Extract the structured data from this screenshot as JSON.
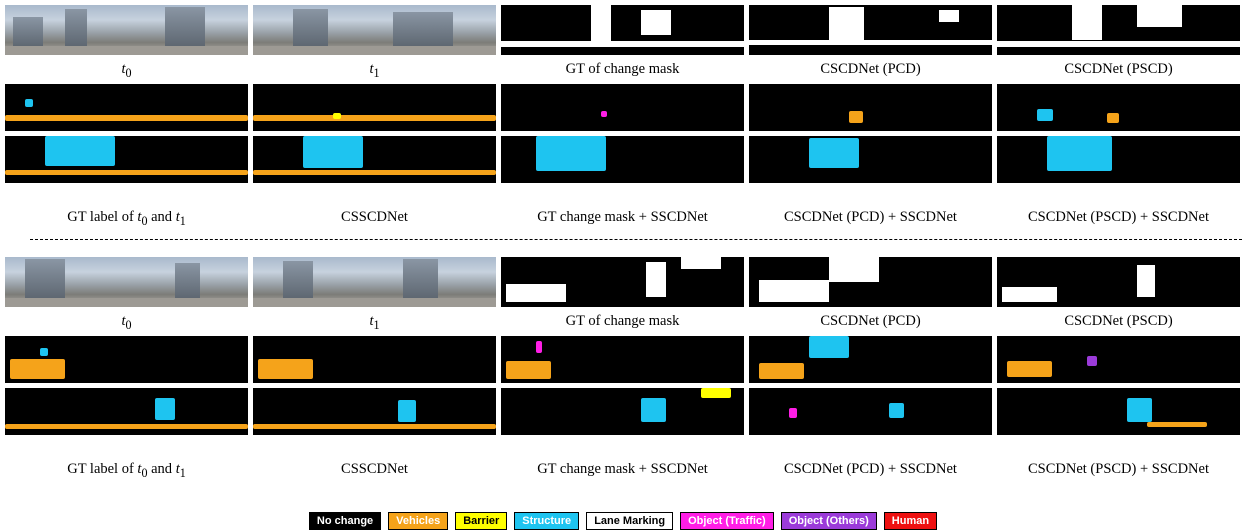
{
  "top_block": {
    "row1_captions": [
      "t0",
      "t1",
      "GT of change mask",
      "CSCDNet (PCD)",
      "CSCDNet (PSCD)"
    ],
    "row3_captions": [
      "GT label of t0 and t1",
      "CSSCDNet",
      "GT change mask + SSCDNet",
      "CSCDNet (PCD) + SSCDNet",
      "CSCDNet (PSCD) + SSCDNet"
    ]
  },
  "bottom_block": {
    "row1_captions": [
      "t0",
      "t1",
      "GT of change mask",
      "CSCDNet (PCD)",
      "CSCDNet (PSCD)"
    ],
    "row3_captions": [
      "GT label of t0 and t1",
      "CSSCDNet",
      "GT change mask + SSCDNet",
      "CSCDNet (PCD) + SSCDNet",
      "CSCDNet (PSCD) + SSCDNet"
    ]
  },
  "caption_parts": {
    "t": "t",
    "sub0": "0",
    "sub1": "1",
    "gt_label_prefix": "GT label of ",
    "and": " and "
  },
  "legend": [
    {
      "label": "No change",
      "bg": "#000000",
      "fg": "#ffffff"
    },
    {
      "label": "Vehicles",
      "bg": "#f5a31a",
      "fg": "#ffffff"
    },
    {
      "label": "Barrier",
      "bg": "#ffff00",
      "fg": "#000000"
    },
    {
      "label": "Structure",
      "bg": "#1ec4f0",
      "fg": "#ffffff"
    },
    {
      "label": "Lane Marking",
      "bg": "#ffffff",
      "fg": "#000000"
    },
    {
      "label": "Object (Traffic)",
      "bg": "#ff1ee6",
      "fg": "#ffffff"
    },
    {
      "label": "Object (Others)",
      "bg": "#9b3bd9",
      "fg": "#ffffff"
    },
    {
      "label": "Human",
      "bg": "#ee1111",
      "fg": "#ffffff"
    }
  ]
}
